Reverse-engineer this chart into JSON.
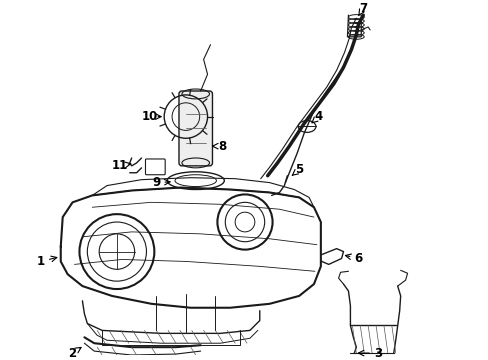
{
  "bg_color": "#ffffff",
  "line_color": "#1a1a1a",
  "fig_width": 4.89,
  "fig_height": 3.6,
  "dpi": 100,
  "tank_color": "#f0f0f0",
  "part_color": "#e8e8e8"
}
